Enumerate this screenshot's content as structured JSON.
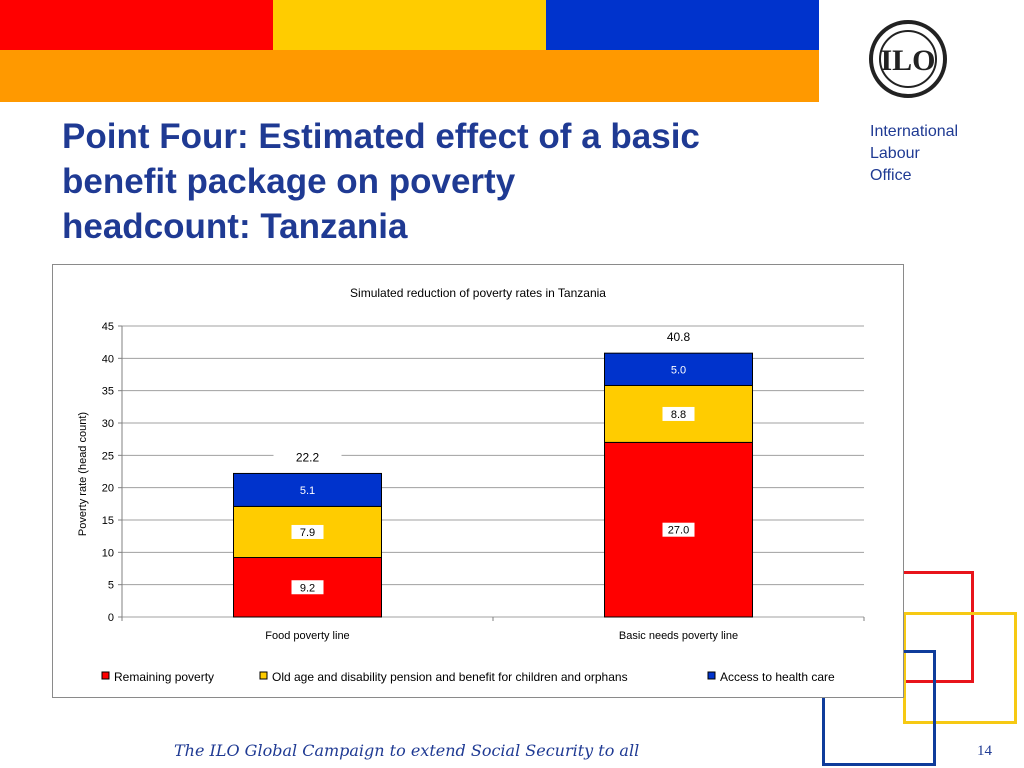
{
  "colors": {
    "red": "#ff0000",
    "yellow": "#ffcc00",
    "blue": "#0033cc",
    "orange": "#ff9900",
    "navy": "#1f3a93",
    "square_red": "#e8141b",
    "square_yellow": "#f6c913",
    "square_blue": "#0f3c9b"
  },
  "slide": {
    "title_lines": [
      "Point Four: Estimated effect of a basic",
      "benefit package on poverty",
      "headcount:  Tanzania"
    ],
    "organization_lines": [
      "International",
      "Labour",
      "Office"
    ],
    "logo_text": "ILO",
    "footer": "The ILO Global Campaign to extend Social Security to all",
    "page_number": "14"
  },
  "chart_data": {
    "type": "bar",
    "stacked": true,
    "title": "Simulated reduction of poverty rates in Tanzania",
    "ylabel": "Poverty rate (head count)",
    "xlabel": "",
    "ylim": [
      0,
      45
    ],
    "yticks": [
      "0",
      "5",
      "10",
      "15",
      "20",
      "25",
      "30",
      "35",
      "40",
      "45"
    ],
    "grid": true,
    "legend_position": "bottom",
    "categories": [
      "Food poverty line",
      "Basic needs poverty line"
    ],
    "series": [
      {
        "name": "Remaining poverty",
        "color": "#ff0000",
        "values": [
          9.2,
          27.0
        ],
        "labels": [
          "9.2",
          "27.0"
        ]
      },
      {
        "name": "Old age and disability pension and benefit for children and orphans",
        "color": "#ffcc00",
        "values": [
          7.9,
          8.8
        ],
        "labels": [
          "7.9",
          "8.8"
        ]
      },
      {
        "name": "Access to health care",
        "color": "#0033cc",
        "values": [
          5.1,
          5.0
        ],
        "labels": [
          "5.1",
          "5.0"
        ]
      }
    ],
    "totals": [
      22.2,
      40.8
    ],
    "total_labels": [
      "22.2",
      "40.8"
    ]
  }
}
